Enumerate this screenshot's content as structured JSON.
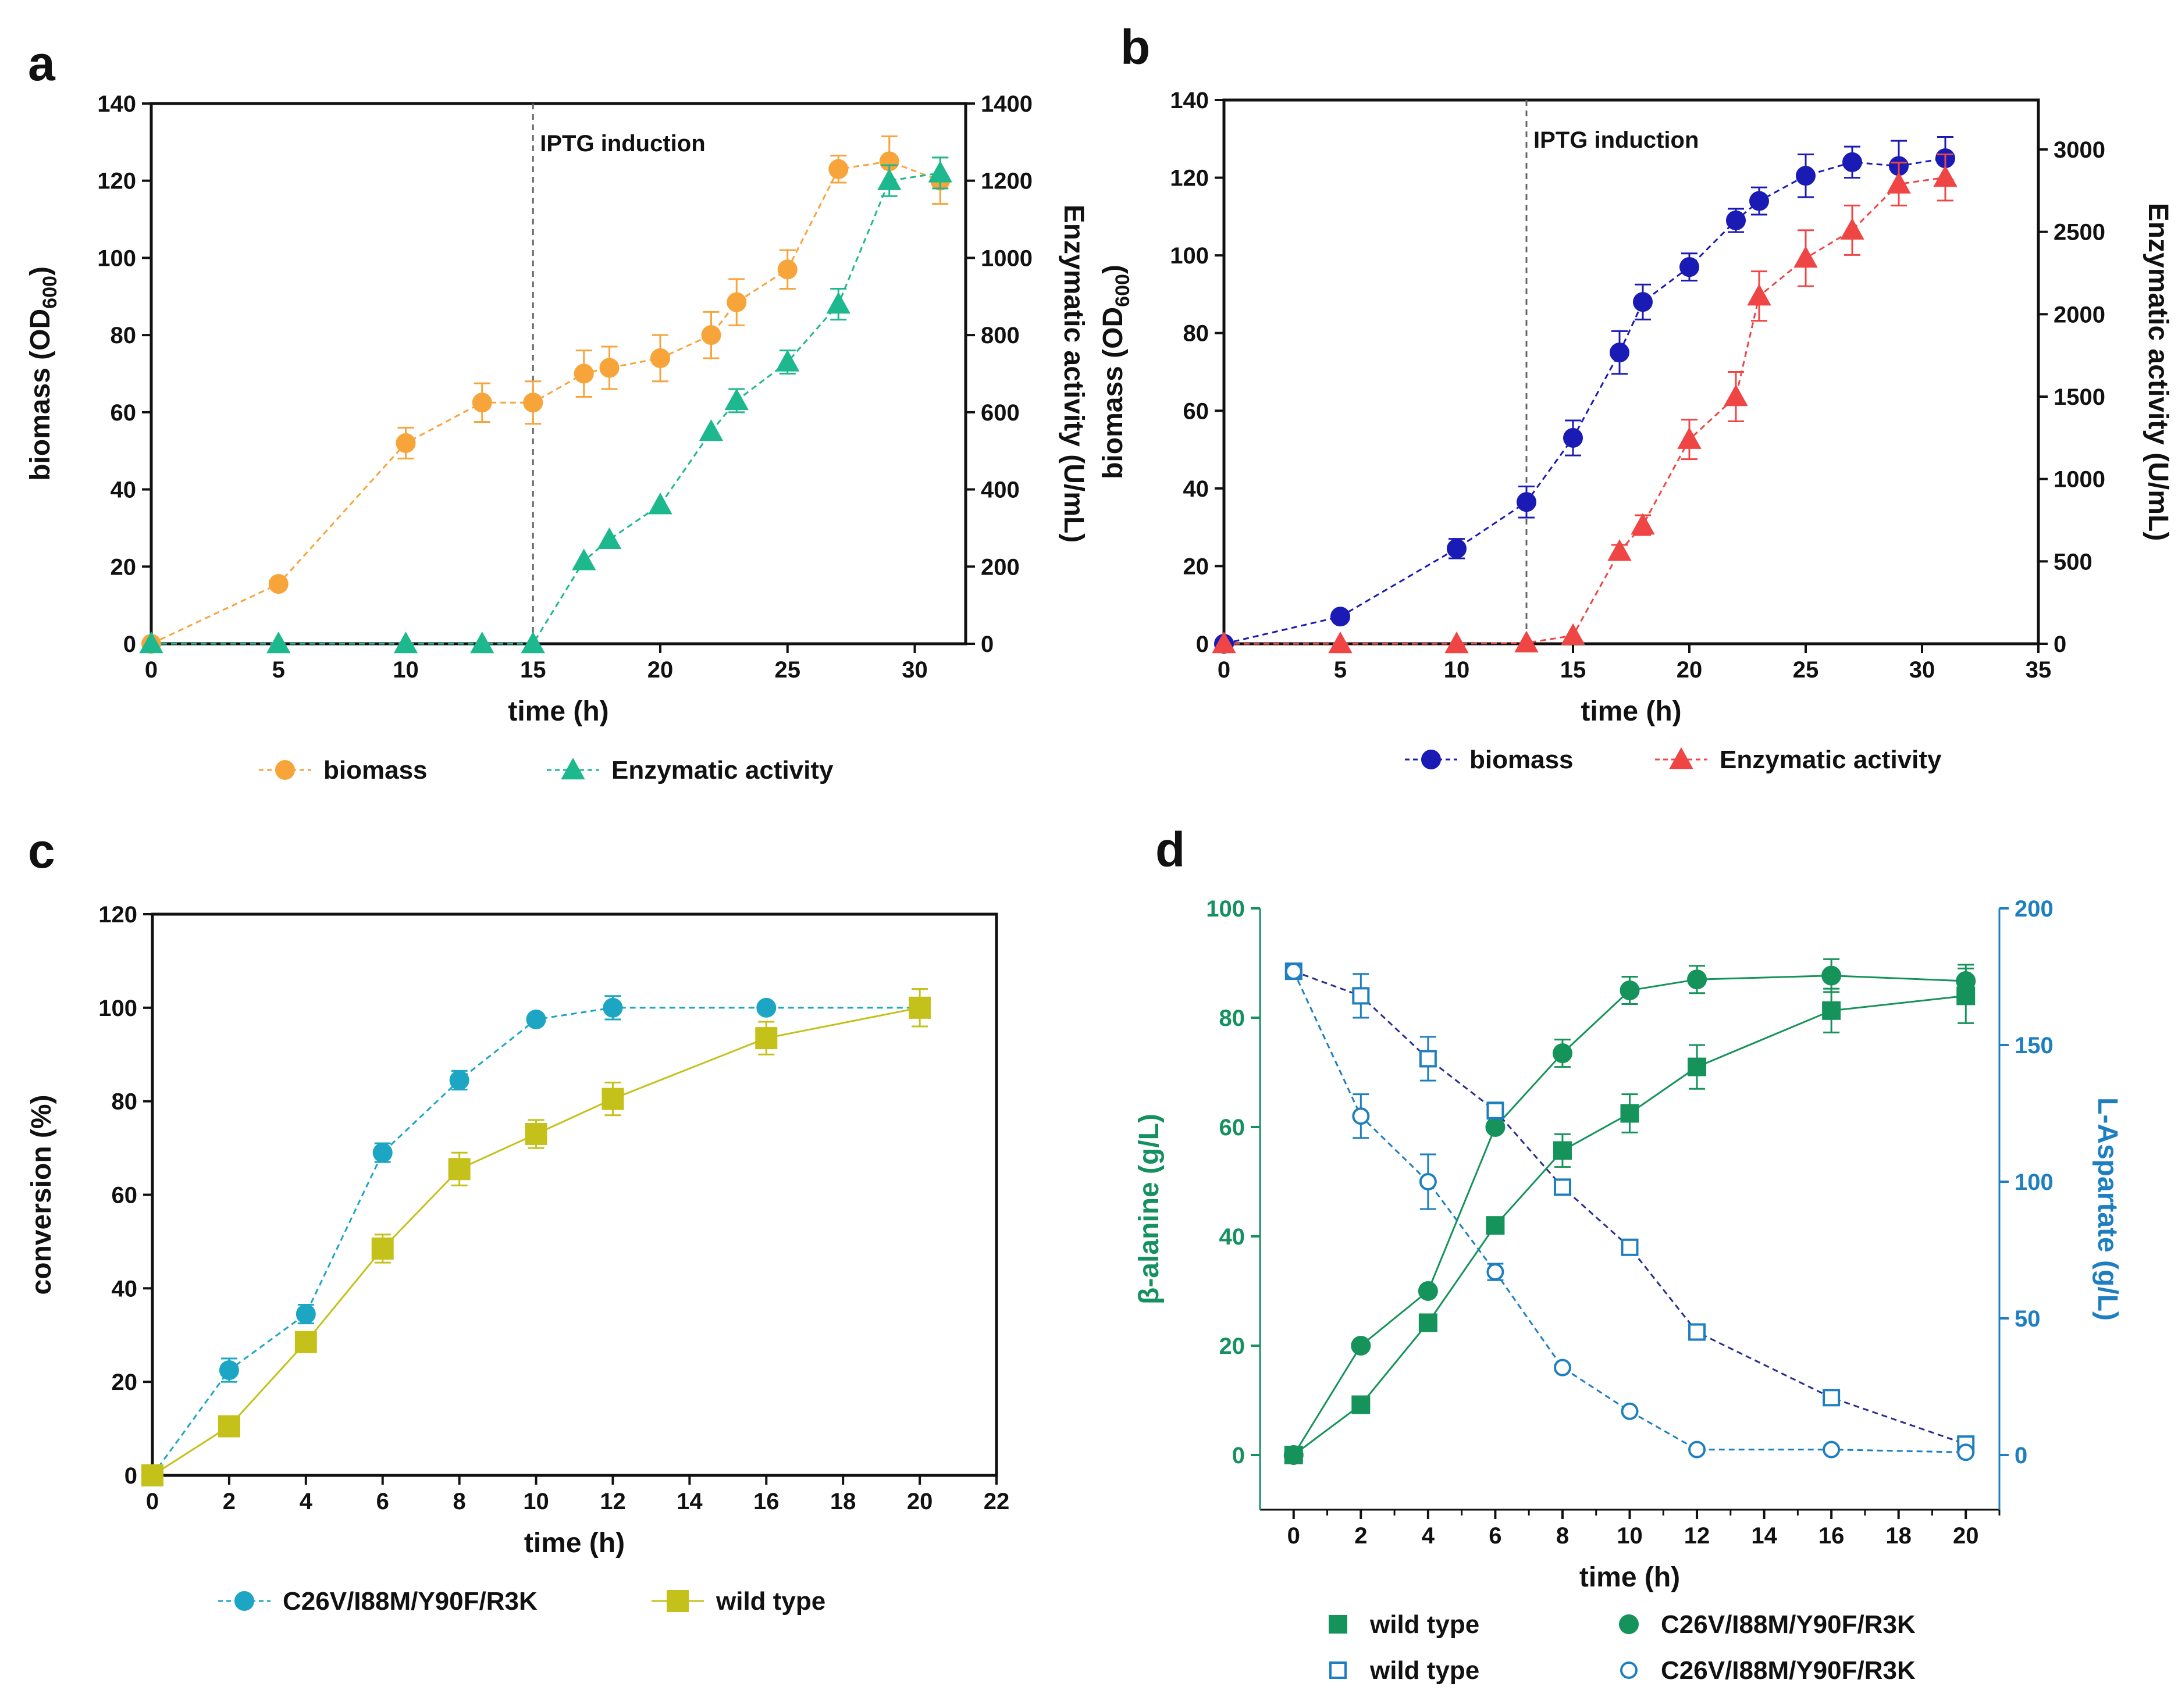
{
  "panels": [
    {
      "label": "a",
      "type": "line",
      "xlabel": "time (h)",
      "ylabel_main": "biomass (OD",
      "ylabel_sub": "600",
      "ylabel_end": ")",
      "y2label": "Enzymatic activity (U/mL)",
      "xlim": [
        0,
        32
      ],
      "xticks": [
        0,
        5,
        10,
        15,
        20,
        25,
        30
      ],
      "ylim": [
        0,
        140
      ],
      "yticks": [
        0,
        20,
        40,
        60,
        80,
        100,
        120,
        140
      ],
      "y2lim": [
        0,
        1400
      ],
      "y2ticks": [
        0,
        200,
        400,
        600,
        800,
        1000,
        1200,
        1400
      ],
      "vline": {
        "x": 15,
        "label": "IPTG induction"
      },
      "series": [
        {
          "name": "biomass",
          "axis": "left",
          "marker": "circle",
          "color": "#F7A43B",
          "dashed": true,
          "x": [
            0,
            5,
            10,
            13,
            15,
            17,
            18,
            20,
            22,
            23,
            25,
            27,
            29,
            31
          ],
          "y": [
            0,
            15.5,
            52,
            62.5,
            62.5,
            70,
            71.5,
            74,
            80,
            88.5,
            97,
            123,
            125,
            120
          ],
          "err": [
            0,
            0,
            4,
            5,
            5.5,
            6,
            5.5,
            6,
            6,
            6,
            5,
            3.5,
            6.5,
            6
          ]
        },
        {
          "name": "Enzymatic activity",
          "axis": "right",
          "marker": "triangle",
          "color": "#1DB88E",
          "dashed": true,
          "x": [
            0,
            5,
            10,
            13,
            15,
            17,
            18,
            20,
            22,
            23,
            25,
            27,
            29,
            31
          ],
          "y": [
            0,
            0,
            0,
            0,
            0,
            215,
            270,
            360,
            550,
            630,
            730,
            880,
            1200,
            1220
          ],
          "err": [
            0,
            0,
            0,
            0,
            0,
            0,
            0,
            0,
            0,
            30,
            30,
            40,
            40,
            40
          ]
        }
      ]
    },
    {
      "label": "b",
      "type": "line",
      "xlabel": "time (h)",
      "ylabel_main": "biomass (OD",
      "ylabel_sub": "600",
      "ylabel_end": ")",
      "y2label": "Enzymatic activity (U/mL)",
      "xlim": [
        0,
        35
      ],
      "xticks": [
        0,
        5,
        10,
        15,
        20,
        25,
        30,
        35
      ],
      "ylim": [
        0,
        140
      ],
      "yticks": [
        0,
        20,
        40,
        60,
        80,
        100,
        120,
        140
      ],
      "y2lim": [
        0,
        3300
      ],
      "y2ticks": [
        0,
        500,
        1000,
        1500,
        2000,
        2500,
        3000
      ],
      "vline": {
        "x": 13,
        "label": "IPTG induction"
      },
      "series": [
        {
          "name": "biomass",
          "axis": "left",
          "marker": "circle",
          "color": "#1A1AB5",
          "dashed": true,
          "x": [
            0,
            5,
            10,
            13,
            15,
            17,
            18,
            20,
            22,
            23,
            25,
            27,
            29,
            31
          ],
          "y": [
            0,
            7,
            24.5,
            36.5,
            53,
            75,
            88,
            97,
            109,
            114,
            120.5,
            124,
            123,
            125
          ],
          "err": [
            0,
            0,
            2.5,
            4,
            4.5,
            5.5,
            4.5,
            3.5,
            3,
            3.5,
            5.5,
            4,
            6.5,
            5.5
          ]
        },
        {
          "name": "Enzymatic activity",
          "axis": "right",
          "marker": "triangle",
          "color": "#F04545",
          "dashed": true,
          "x": [
            0,
            5,
            10,
            13,
            15,
            17,
            18,
            20,
            22,
            23,
            25,
            27,
            29,
            31
          ],
          "y": [
            0,
            0,
            0,
            5,
            50,
            560,
            720,
            1240,
            1500,
            2110,
            2340,
            2510,
            2790,
            2830
          ],
          "err": [
            0,
            0,
            0,
            0,
            0,
            40,
            60,
            120,
            150,
            150,
            170,
            150,
            130,
            140
          ]
        }
      ]
    },
    {
      "label": "c",
      "type": "line",
      "xlabel": "time (h)",
      "ylabel": "conversion (%)",
      "xlim": [
        0,
        22
      ],
      "xticks": [
        0,
        2,
        4,
        6,
        8,
        10,
        12,
        14,
        16,
        18,
        20,
        22
      ],
      "ylim": [
        0,
        120
      ],
      "yticks": [
        0,
        20,
        40,
        60,
        80,
        100,
        120
      ],
      "series": [
        {
          "name": "C26V/I88M/Y90F/R3K",
          "marker": "circle",
          "color": "#1CA6C3",
          "dashed": true,
          "x": [
            0,
            2,
            4,
            6,
            8,
            10,
            12,
            16,
            20
          ],
          "y": [
            0,
            22.5,
            34.5,
            69,
            84.5,
            97.5,
            100,
            100,
            100
          ],
          "err": [
            0,
            2.5,
            2,
            2,
            2,
            0,
            2.5,
            0,
            0
          ]
        },
        {
          "name": "wild type",
          "marker": "square",
          "color": "#C4C11A",
          "dashed": false,
          "x": [
            0,
            2,
            4,
            6,
            8,
            10,
            12,
            16,
            20
          ],
          "y": [
            0,
            10.5,
            28.5,
            48.5,
            65.5,
            73,
            80.5,
            93.5,
            100
          ],
          "err": [
            0,
            0,
            0,
            3,
            3.5,
            3,
            3.5,
            3.5,
            4
          ]
        }
      ]
    },
    {
      "label": "d",
      "type": "line",
      "xlabel": "time (h)",
      "ylabel": "β-alanine (g/L)",
      "y2label": "L-Aspartate (g/L)",
      "xlim": [
        -1,
        21
      ],
      "xticks": [
        0,
        2,
        4,
        6,
        8,
        10,
        12,
        14,
        16,
        18,
        20
      ],
      "ylim": [
        -10,
        100
      ],
      "yticks": [
        0,
        20,
        40,
        60,
        80,
        100
      ],
      "y2lim": [
        -20,
        200
      ],
      "y2ticks": [
        0,
        50,
        100,
        150,
        200
      ],
      "series": [
        {
          "name": "wild type",
          "axis": "left",
          "marker": "square-filled",
          "color": "#15935A",
          "dashed": false,
          "lineColor": "#15935A",
          "x": [
            0,
            2,
            4,
            6,
            8,
            10,
            12,
            16,
            20
          ],
          "y": [
            0,
            9.2,
            24.2,
            42,
            55.7,
            62.5,
            71,
            81.3,
            84
          ],
          "err": [
            0,
            0,
            0,
            1.5,
            3,
            3.5,
            4,
            4,
            5
          ]
        },
        {
          "name": "C26V/I88M/Y90F/R3K",
          "axis": "left",
          "marker": "circle-filled",
          "color": "#15935A",
          "dashed": false,
          "lineColor": "#15935A",
          "x": [
            0,
            2,
            4,
            6,
            8,
            10,
            12,
            16,
            20
          ],
          "y": [
            0,
            20,
            30,
            60,
            73.5,
            85,
            87,
            87.7,
            86.7
          ],
          "err": [
            0,
            0,
            0,
            0,
            2.5,
            2.5,
            2.5,
            3,
            3
          ]
        },
        {
          "name": "wild type",
          "axis": "right",
          "marker": "square-open",
          "color": "#1E7FC0",
          "dashed": true,
          "lineColor": "#2A2E8F",
          "x": [
            0,
            2,
            4,
            6,
            8,
            10,
            12,
            16,
            20
          ],
          "y": [
            177,
            168,
            145,
            126,
            98,
            76,
            45,
            21,
            4
          ],
          "err": [
            0,
            8,
            8,
            3,
            0,
            0,
            0,
            0,
            0
          ]
        },
        {
          "name": "C26V/I88M/Y90F/R3K",
          "axis": "right",
          "marker": "circle-open",
          "color": "#1E7FC0",
          "dashed": true,
          "lineColor": "#1E7FC0",
          "x": [
            0,
            2,
            4,
            6,
            8,
            10,
            12,
            16,
            20
          ],
          "y": [
            177,
            124,
            100,
            67,
            32,
            16,
            2,
            2,
            1
          ],
          "err": [
            0,
            8,
            10,
            3,
            0,
            0,
            0,
            0,
            0
          ]
        }
      ]
    }
  ],
  "chart_data": [
    {
      "type": "line",
      "panel": "a",
      "title": "",
      "xlabel": "time (h)",
      "ylabel": "biomass (OD600)",
      "y2label": "Enzymatic activity (U/mL)",
      "series": [
        {
          "name": "biomass",
          "x": [
            0,
            5,
            10,
            13,
            15,
            17,
            18,
            20,
            22,
            23,
            25,
            27,
            29,
            31
          ],
          "values": [
            0,
            15.5,
            52,
            62.5,
            62.5,
            70,
            71.5,
            74,
            80,
            88.5,
            97,
            123,
            125,
            120
          ]
        },
        {
          "name": "Enzymatic activity",
          "x": [
            0,
            5,
            10,
            13,
            15,
            17,
            18,
            20,
            22,
            23,
            25,
            27,
            29,
            31
          ],
          "values": [
            0,
            0,
            0,
            0,
            0,
            215,
            270,
            360,
            550,
            630,
            730,
            880,
            1200,
            1220
          ]
        }
      ]
    },
    {
      "type": "line",
      "panel": "b",
      "title": "",
      "xlabel": "time (h)",
      "ylabel": "biomass (OD600)",
      "y2label": "Enzymatic activity (U/mL)",
      "series": [
        {
          "name": "biomass",
          "x": [
            0,
            5,
            10,
            13,
            15,
            17,
            18,
            20,
            22,
            23,
            25,
            27,
            29,
            31
          ],
          "values": [
            0,
            7,
            24.5,
            36.5,
            53,
            75,
            88,
            97,
            109,
            114,
            120.5,
            124,
            123,
            125
          ]
        },
        {
          "name": "Enzymatic activity",
          "x": [
            0,
            5,
            10,
            13,
            15,
            17,
            18,
            20,
            22,
            23,
            25,
            27,
            29,
            31
          ],
          "values": [
            0,
            0,
            0,
            5,
            50,
            560,
            720,
            1240,
            1500,
            2110,
            2340,
            2510,
            2790,
            2830
          ]
        }
      ]
    },
    {
      "type": "line",
      "panel": "c",
      "title": "",
      "xlabel": "time (h)",
      "ylabel": "conversion (%)",
      "series": [
        {
          "name": "C26V/I88M/Y90F/R3K",
          "x": [
            0,
            2,
            4,
            6,
            8,
            10,
            12,
            16,
            20
          ],
          "values": [
            0,
            22.5,
            34.5,
            69,
            84.5,
            97.5,
            100,
            100,
            100
          ]
        },
        {
          "name": "wild type",
          "x": [
            0,
            2,
            4,
            6,
            8,
            10,
            12,
            16,
            20
          ],
          "values": [
            0,
            10.5,
            28.5,
            48.5,
            65.5,
            73,
            80.5,
            93.5,
            100
          ]
        }
      ]
    },
    {
      "type": "line",
      "panel": "d",
      "title": "",
      "xlabel": "time (h)",
      "ylabel": "β-alanine (g/L)",
      "y2label": "L-Aspartate (g/L)",
      "series": [
        {
          "name": "wild type (β-alanine)",
          "x": [
            0,
            2,
            4,
            6,
            8,
            10,
            12,
            16,
            20
          ],
          "values": [
            0,
            9.2,
            24.2,
            42,
            55.7,
            62.5,
            71,
            81.3,
            84
          ]
        },
        {
          "name": "C26V/I88M/Y90F/R3K (β-alanine)",
          "x": [
            0,
            2,
            4,
            6,
            8,
            10,
            12,
            16,
            20
          ],
          "values": [
            0,
            20,
            30,
            60,
            73.5,
            85,
            87,
            87.7,
            86.7
          ]
        },
        {
          "name": "wild type (L-Aspartate)",
          "x": [
            0,
            2,
            4,
            6,
            8,
            10,
            12,
            16,
            20
          ],
          "values": [
            177,
            168,
            145,
            126,
            98,
            76,
            45,
            21,
            4
          ]
        },
        {
          "name": "C26V/I88M/Y90F/R3K (L-Aspartate)",
          "x": [
            0,
            2,
            4,
            6,
            8,
            10,
            12,
            16,
            20
          ],
          "values": [
            177,
            124,
            100,
            67,
            32,
            16,
            2,
            2,
            1
          ]
        }
      ]
    }
  ]
}
